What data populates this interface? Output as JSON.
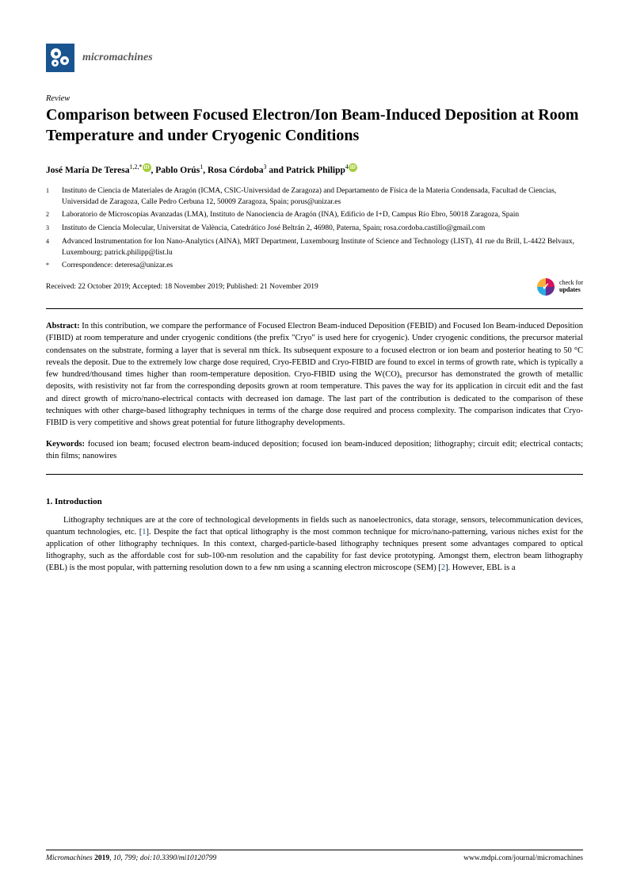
{
  "journal": {
    "name": "micromachines"
  },
  "article": {
    "type": "Review",
    "title": "Comparison between Focused Electron/Ion Beam-Induced Deposition at Room Temperature and under Cryogenic Conditions"
  },
  "authors": {
    "a1": {
      "name": "José María De Teresa",
      "sup": "1,2,*"
    },
    "a2": {
      "name": "Pablo Orús",
      "sup": "1"
    },
    "a3": {
      "name": "Rosa Córdoba",
      "sup": "3"
    },
    "a4": {
      "name": "Patrick Philipp",
      "sup": "4"
    }
  },
  "affiliations": {
    "n1": "1",
    "t1": "Instituto de Ciencia de Materiales de Aragón (ICMA, CSIC-Universidad de Zaragoza) and Departamento de Física de la Materia Condensada, Facultad de Ciencias, Universidad de Zaragoza, Calle Pedro Cerbuna 12, 50009 Zaragoza, Spain; porus@unizar.es",
    "n2": "2",
    "t2": "Laboratorio de Microscopías Avanzadas (LMA), Instituto de Nanociencia de Aragón (INA), Edificio de I+D, Campus Río Ebro, 50018 Zaragoza, Spain",
    "n3": "3",
    "t3": "Instituto de Ciencia Molecular, Universitat de València, Catedrático José Beltrán 2, 46980, Paterna, Spain; rosa.cordoba.castillo@gmail.com",
    "n4": "4",
    "t4": "Advanced Instrumentation for Ion Nano-Analytics (AINA), MRT Department, Luxembourg Institute of Science and Technology (LIST), 41 rue du Brill, L-4422 Belvaux, Luxembourg; patrick.philipp@list.lu",
    "nc": "*",
    "tc": "Correspondence: deteresa@unizar.es"
  },
  "dates": "Received: 22 October 2019; Accepted: 18 November 2019; Published: 21 November 2019",
  "check": {
    "line1": "check for",
    "line2": "updates"
  },
  "abstract": {
    "label": "Abstract:",
    "text": " In this contribution, we compare the performance of Focused Electron Beam-induced Deposition (FEBID) and Focused Ion Beam-induced Deposition (FIBID) at room temperature and under cryogenic conditions (the prefix \"Cryo\" is used here for cryogenic). Under cryogenic conditions, the precursor material condensates on the substrate, forming a layer that is several nm thick. Its subsequent exposure to a focused electron or ion beam and posterior heating to 50 °C reveals the deposit. Due to the extremely low charge dose required, Cryo-FEBID and Cryo-FIBID are found to excel in terms of growth rate, which is typically a few hundred/thousand times higher than room-temperature deposition. Cryo-FIBID using the W(CO)₆ precursor has demonstrated the growth of metallic deposits, with resistivity not far from the corresponding deposits grown at room temperature. This paves the way for its application in circuit edit and the fast and direct growth of micro/nano-electrical contacts with decreased ion damage. The last part of the contribution is dedicated to the comparison of these techniques with other charge-based lithography techniques in terms of the charge dose required and process complexity. The comparison indicates that Cryo-FIBID is very competitive and shows great potential for future lithography developments."
  },
  "keywords": {
    "label": "Keywords:",
    "text": " focused ion beam; focused electron beam-induced deposition; focused ion beam-induced deposition; lithography; circuit edit; electrical contacts; thin films; nanowires"
  },
  "section1": {
    "heading": "1. Introduction",
    "p1a": "Lithography techniques are at the core of technological developments in fields such as nanoelectronics, data storage, sensors, telecommunication devices, quantum technologies, etc. [",
    "p1ref1": "1",
    "p1b": "]. Despite the fact that optical lithography is the most common technique for micro/nano-patterning, various niches exist for the application of other lithography techniques. In this context, charged-particle-based lithography techniques present some advantages compared to optical lithography, such as the affordable cost for sub-100-nm resolution and the capability for fast device prototyping. Amongst them, electron beam lithography (EBL) is the most popular, with patterning resolution down to a few nm using a scanning electron microscope (SEM) [",
    "p1ref2": "2",
    "p1c": "]. However, EBL is a"
  },
  "footer": {
    "left_italic": "Micromachines ",
    "left_bold": "2019",
    "left_rest": ", 10, 799; doi:10.3390/mi10120799",
    "right": "www.mdpi.com/journal/micromachines"
  },
  "colors": {
    "brand_blue": "#1a5490",
    "orcid_green": "#a6ce39",
    "text": "#000000",
    "gray": "#585858"
  },
  "typography": {
    "title_fontsize": 20,
    "body_fontsize": 10.5,
    "affil_fontsize": 9.5,
    "footer_fontsize": 9.5
  }
}
